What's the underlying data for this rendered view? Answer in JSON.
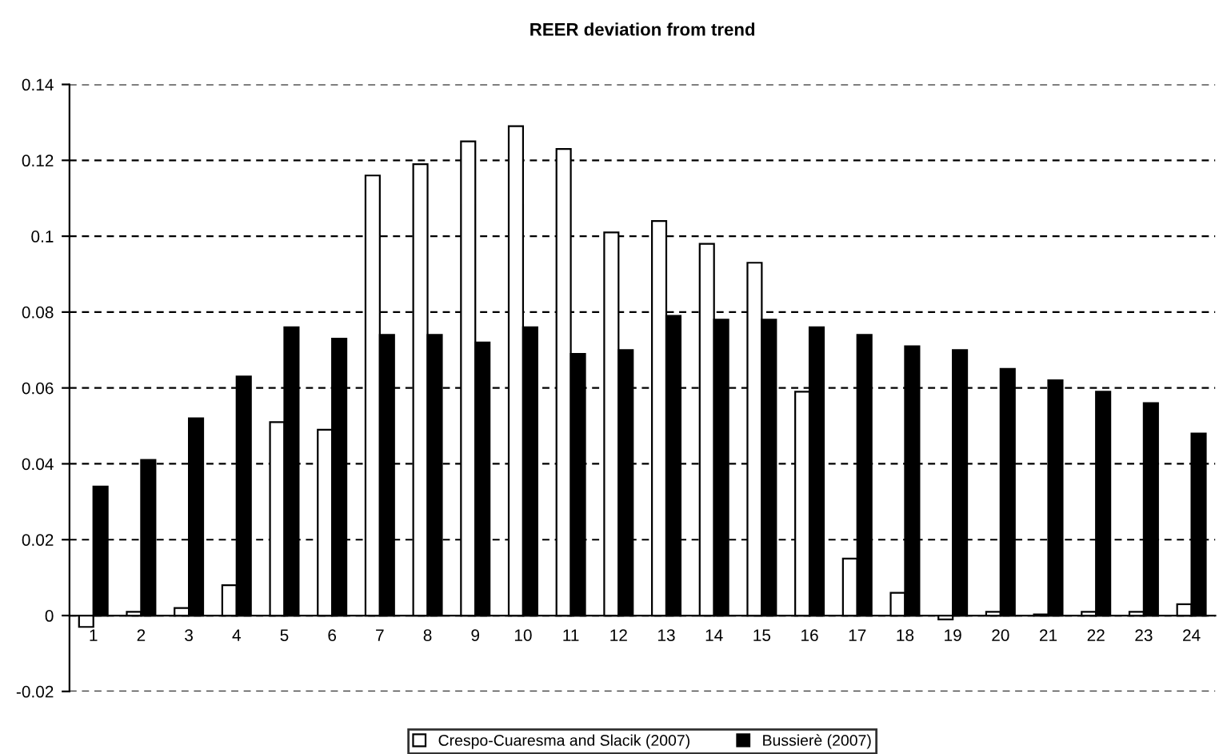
{
  "chart_data": {
    "type": "bar",
    "title": "REER deviation from trend",
    "categories": [
      "1",
      "2",
      "3",
      "4",
      "5",
      "6",
      "7",
      "8",
      "9",
      "10",
      "11",
      "12",
      "13",
      "14",
      "15",
      "16",
      "17",
      "18",
      "19",
      "20",
      "21",
      "22",
      "23",
      "24"
    ],
    "series": [
      {
        "name": "Crespo-Cuaresma and Slacik (2007)",
        "color": "#ffffff",
        "values": [
          -0.003,
          0.001,
          0.002,
          0.008,
          0.051,
          0.049,
          0.116,
          0.119,
          0.125,
          0.129,
          0.123,
          0.101,
          0.104,
          0.098,
          0.093,
          0.059,
          0.015,
          0.006,
          -0.001,
          0.001,
          0.0003,
          0.001,
          0.001,
          0.003
        ]
      },
      {
        "name": "Bussierè (2007)",
        "color": "#000000",
        "values": [
          0.034,
          0.041,
          0.052,
          0.063,
          0.076,
          0.073,
          0.074,
          0.074,
          0.072,
          0.076,
          0.069,
          0.07,
          0.079,
          0.078,
          0.078,
          0.076,
          0.074,
          0.071,
          0.07,
          0.065,
          0.062,
          0.059,
          0.056,
          0.048
        ]
      }
    ],
    "ylim": [
      -0.02,
      0.14
    ],
    "yticks": [
      -0.02,
      0,
      0.02,
      0.04,
      0.06,
      0.08,
      0.1,
      0.12,
      0.14
    ],
    "grid": "y",
    "legend": "bottom"
  }
}
